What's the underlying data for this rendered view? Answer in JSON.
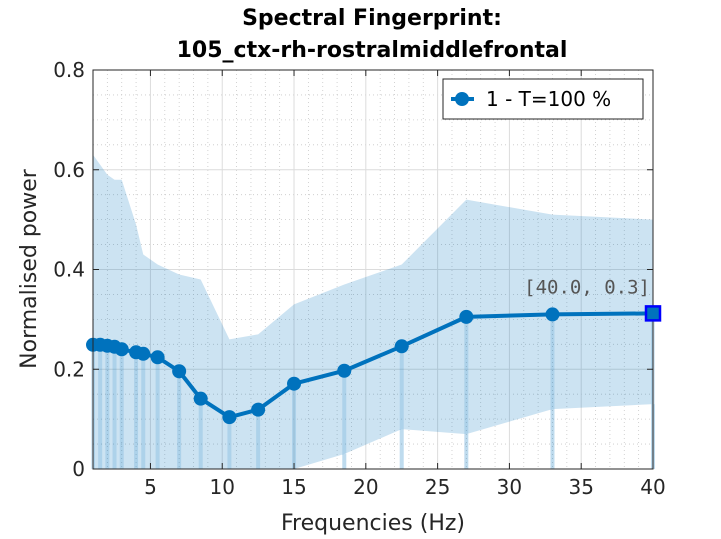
{
  "chart_data": {
    "type": "line",
    "title": [
      "Spectral Fingerprint:",
      "105_ctx-rh-rostralmiddlefrontal"
    ],
    "xlabel": "Frequencies (Hz)",
    "ylabel": "Normalised power",
    "xlim": [
      1,
      40
    ],
    "ylim": [
      0,
      0.8
    ],
    "xticks": [
      5,
      10,
      15,
      20,
      25,
      30,
      35,
      40
    ],
    "yticks": [
      0,
      0.2,
      0.4,
      0.6,
      0.8
    ],
    "grid": true,
    "minor_grid": true,
    "legend_position": "top-right",
    "series": [
      {
        "name": "1 - T=100 %",
        "color": "#0072BD",
        "x": [
          1.0,
          1.5,
          2.0,
          2.5,
          3.0,
          4.0,
          4.5,
          5.5,
          7.0,
          8.5,
          10.5,
          12.5,
          15.0,
          18.5,
          22.5,
          27.0,
          33.0,
          40.0
        ],
        "y": [
          0.249,
          0.249,
          0.247,
          0.245,
          0.24,
          0.234,
          0.231,
          0.224,
          0.196,
          0.141,
          0.104,
          0.119,
          0.171,
          0.197,
          0.246,
          0.305,
          0.31,
          0.312
        ],
        "band_upper": [
          0.63,
          0.61,
          0.59,
          0.58,
          0.58,
          0.49,
          0.43,
          0.41,
          0.39,
          0.38,
          0.26,
          0.27,
          0.33,
          0.37,
          0.41,
          0.54,
          0.51,
          0.5
        ],
        "band_lower": [
          0.0,
          0.0,
          0.0,
          0.0,
          0.0,
          0.0,
          0.0,
          0.0,
          0.0,
          0.0,
          0.0,
          0.0,
          0.0,
          0.03,
          0.08,
          0.07,
          0.12,
          0.13
        ]
      }
    ],
    "datatip": {
      "label": "[40.0, 0.3]",
      "x": 40.0,
      "y": 0.312
    }
  }
}
